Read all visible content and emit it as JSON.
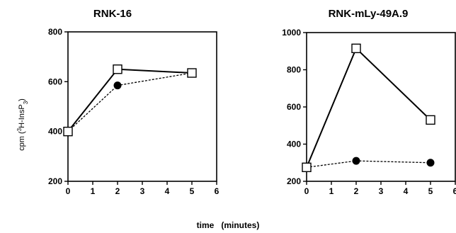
{
  "chart_data": [
    {
      "type": "line",
      "title": "RNK-16",
      "ylabel": "cpm (3H-InsP3)",
      "xlim": [
        0,
        6
      ],
      "ylim": [
        200,
        800
      ],
      "xticks": [
        0,
        1,
        2,
        3,
        4,
        5,
        6
      ],
      "yticks": [
        200,
        400,
        600,
        800
      ],
      "grid": false,
      "series": [
        {
          "marker": "open-square",
          "line": "solid",
          "x": [
            0,
            2,
            5
          ],
          "values": [
            400,
            650,
            635
          ]
        },
        {
          "marker": "filled-circle",
          "line": "dotted",
          "x": [
            0,
            2,
            5
          ],
          "values": [
            400,
            585,
            635
          ]
        }
      ]
    },
    {
      "type": "line",
      "title": "RNK-mLy-49A.9",
      "xlim": [
        0,
        6
      ],
      "ylim": [
        200,
        1000
      ],
      "xticks": [
        0,
        1,
        2,
        3,
        4,
        5,
        6
      ],
      "yticks": [
        200,
        400,
        600,
        800,
        1000
      ],
      "grid": false,
      "series": [
        {
          "marker": "open-square",
          "line": "solid",
          "x": [
            0,
            2,
            5
          ],
          "values": [
            275,
            915,
            530
          ]
        },
        {
          "marker": "filled-circle",
          "line": "dotted",
          "x": [
            0,
            2,
            5
          ],
          "values": [
            275,
            310,
            300
          ]
        }
      ]
    }
  ],
  "shared_xlabel": "time   (minutes)"
}
